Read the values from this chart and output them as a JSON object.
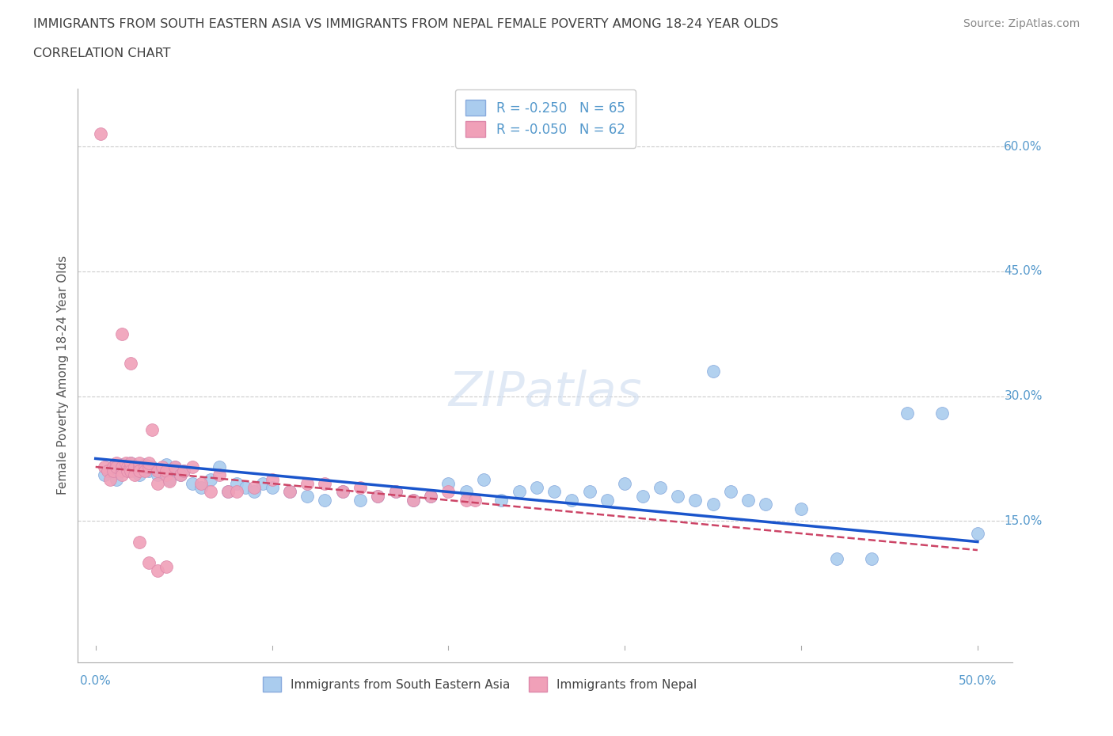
{
  "title_line1": "IMMIGRANTS FROM SOUTH EASTERN ASIA VS IMMIGRANTS FROM NEPAL FEMALE POVERTY AMONG 18-24 YEAR OLDS",
  "title_line2": "CORRELATION CHART",
  "source": "Source: ZipAtlas.com",
  "ylabel": "Female Poverty Among 18-24 Year Olds",
  "watermark": "ZIPatlas",
  "color_blue": "#aaccee",
  "color_pink": "#f0a0b8",
  "line_color_blue": "#1a55cc",
  "line_color_pink": "#cc4466",
  "title_color": "#404040",
  "axis_color": "#5599cc",
  "grid_color": "#dddddd",
  "blue_intercept": 0.225,
  "blue_slope": -0.2,
  "pink_intercept": 0.215,
  "pink_slope": -0.15,
  "blue_x": [
    0.005,
    0.008,
    0.01,
    0.012,
    0.015,
    0.015,
    0.018,
    0.02,
    0.022,
    0.025,
    0.028,
    0.03,
    0.032,
    0.035,
    0.038,
    0.04,
    0.042,
    0.045,
    0.048,
    0.05,
    0.055,
    0.06,
    0.065,
    0.07,
    0.075,
    0.08,
    0.085,
    0.09,
    0.095,
    0.1,
    0.11,
    0.12,
    0.13,
    0.14,
    0.15,
    0.16,
    0.17,
    0.18,
    0.19,
    0.2,
    0.21,
    0.22,
    0.23,
    0.24,
    0.25,
    0.26,
    0.27,
    0.28,
    0.29,
    0.3,
    0.31,
    0.32,
    0.33,
    0.34,
    0.35,
    0.36,
    0.37,
    0.38,
    0.4,
    0.42,
    0.44,
    0.46,
    0.48,
    0.5,
    0.35
  ],
  "blue_y": [
    0.205,
    0.21,
    0.215,
    0.2,
    0.215,
    0.218,
    0.212,
    0.22,
    0.21,
    0.205,
    0.218,
    0.21,
    0.215,
    0.205,
    0.21,
    0.218,
    0.2,
    0.215,
    0.205,
    0.21,
    0.195,
    0.19,
    0.2,
    0.215,
    0.185,
    0.195,
    0.19,
    0.185,
    0.195,
    0.19,
    0.185,
    0.18,
    0.175,
    0.185,
    0.175,
    0.18,
    0.185,
    0.175,
    0.18,
    0.195,
    0.185,
    0.2,
    0.175,
    0.185,
    0.19,
    0.185,
    0.175,
    0.185,
    0.175,
    0.195,
    0.18,
    0.19,
    0.18,
    0.175,
    0.17,
    0.185,
    0.175,
    0.17,
    0.165,
    0.105,
    0.105,
    0.28,
    0.28,
    0.135,
    0.33
  ],
  "pink_x": [
    0.003,
    0.005,
    0.007,
    0.008,
    0.01,
    0.01,
    0.012,
    0.012,
    0.015,
    0.015,
    0.015,
    0.017,
    0.018,
    0.018,
    0.02,
    0.02,
    0.02,
    0.022,
    0.022,
    0.025,
    0.025,
    0.025,
    0.028,
    0.028,
    0.03,
    0.03,
    0.032,
    0.035,
    0.035,
    0.038,
    0.04,
    0.04,
    0.042,
    0.045,
    0.048,
    0.05,
    0.055,
    0.06,
    0.065,
    0.07,
    0.075,
    0.08,
    0.09,
    0.1,
    0.11,
    0.12,
    0.13,
    0.14,
    0.15,
    0.16,
    0.17,
    0.18,
    0.19,
    0.2,
    0.21,
    0.215,
    0.025,
    0.03,
    0.035,
    0.04,
    0.015,
    0.02
  ],
  "pink_y": [
    0.615,
    0.215,
    0.21,
    0.2,
    0.215,
    0.21,
    0.22,
    0.215,
    0.21,
    0.215,
    0.205,
    0.22,
    0.215,
    0.21,
    0.215,
    0.22,
    0.21,
    0.215,
    0.205,
    0.215,
    0.22,
    0.21,
    0.215,
    0.21,
    0.215,
    0.22,
    0.26,
    0.195,
    0.21,
    0.215,
    0.205,
    0.21,
    0.198,
    0.215,
    0.205,
    0.21,
    0.215,
    0.195,
    0.185,
    0.205,
    0.185,
    0.185,
    0.19,
    0.2,
    0.185,
    0.195,
    0.195,
    0.185,
    0.19,
    0.18,
    0.185,
    0.175,
    0.18,
    0.185,
    0.175,
    0.175,
    0.125,
    0.1,
    0.09,
    0.095,
    0.375,
    0.34
  ]
}
